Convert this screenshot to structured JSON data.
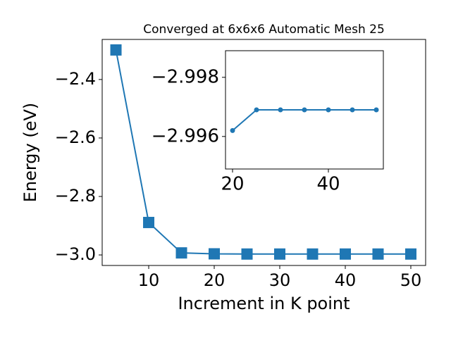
{
  "chart_data": [
    {
      "type": "line",
      "title": "Converged at 6x6x6 Automatic Mesh 25",
      "x_label": "Increment in K point",
      "y_label": "Energy (eV)",
      "x": [
        5,
        10,
        15,
        20,
        25,
        30,
        35,
        40,
        45,
        50
      ],
      "series": [
        {
          "name": "Energy",
          "color": "#1f77b4",
          "marker": "square",
          "values": [
            -2.299,
            -2.889,
            -2.993,
            -2.9962,
            -2.9969,
            -2.9969,
            -2.9969,
            -2.9969,
            -2.9969,
            -2.9969
          ]
        }
      ],
      "xlim": [
        2.9,
        52.26
      ],
      "ylim": [
        -3.036,
        -2.263
      ],
      "xticks": [
        10,
        20,
        30,
        40,
        50
      ],
      "yticks": [
        {
          "value": -3.0,
          "label": "−3.0"
        },
        {
          "value": -2.8,
          "label": "−2.8"
        },
        {
          "value": -2.6,
          "label": "−2.6"
        },
        {
          "value": -2.4,
          "label": "−2.4"
        }
      ]
    },
    {
      "type": "line",
      "x": [
        20,
        25,
        30,
        35,
        40,
        45,
        50
      ],
      "series": [
        {
          "name": "Energy",
          "color": "#1f77b4",
          "marker": "circle",
          "values": [
            -2.9962,
            -2.9969,
            -2.9969,
            -2.9969,
            -2.9969,
            -2.9969,
            -2.9969
          ]
        }
      ],
      "xlim": [
        18.53,
        51.47
      ],
      "ylim": [
        -2.9949,
        -2.9989
      ],
      "xticks": [
        20,
        40
      ],
      "yticks": [
        {
          "value": -2.998,
          "label": "−2.998"
        },
        {
          "value": -2.996,
          "label": "−2.996"
        }
      ]
    }
  ]
}
